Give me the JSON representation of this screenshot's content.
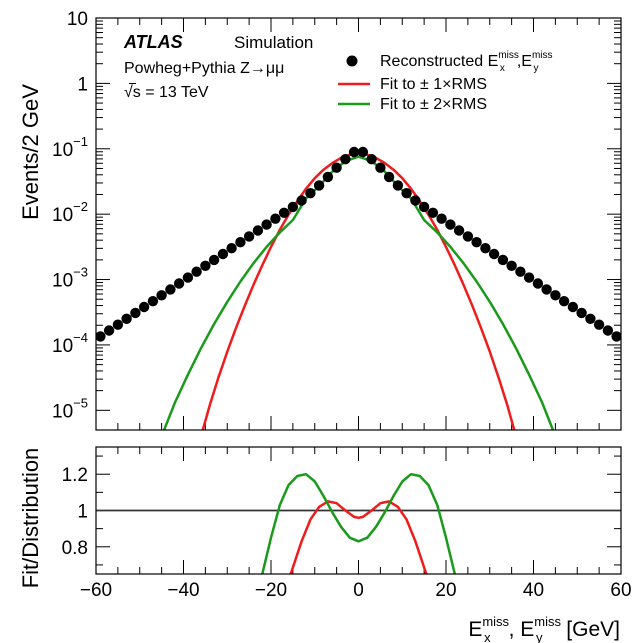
{
  "chart_data": [
    {
      "type": "scatter",
      "yscale": "log",
      "ylabel": "Events/2 GeV",
      "xlim": [
        -60,
        60
      ],
      "ylim": [
        5e-06,
        10
      ],
      "annotations": {
        "experiment": "ATLAS",
        "status": "Simulation",
        "process": "Powheg+Pythia Z→μμ",
        "energy_sqrt": "√s",
        "energy_value": " = 13 TeV"
      },
      "y_ticks": [
        {
          "value": 10,
          "base": "10",
          "exp": ""
        },
        {
          "value": 1,
          "base": "1",
          "exp": ""
        },
        {
          "value": 0.1,
          "base": "10",
          "exp": "−1"
        },
        {
          "value": 0.01,
          "base": "10",
          "exp": "−2"
        },
        {
          "value": 0.001,
          "base": "10",
          "exp": "−3"
        },
        {
          "value": 0.0001,
          "base": "10",
          "exp": "−4"
        },
        {
          "value": 1e-05,
          "base": "10",
          "exp": "−5"
        }
      ],
      "legend_position": "top-right",
      "series": [
        {
          "name": "Reconstructed E_x^miss, E_y^miss",
          "legend": {
            "main": "Reconstructed E",
            "sup1": "miss",
            "sub1": "x",
            "mid": ",E",
            "sup2": "miss",
            "sub2": "y"
          },
          "kind": "points",
          "color": "#000000",
          "x": [
            -59,
            -57,
            -55,
            -53,
            -51,
            -49,
            -47,
            -45,
            -43,
            -41,
            -39,
            -37,
            -35,
            -33,
            -31,
            -29,
            -27,
            -25,
            -23,
            -21,
            -19,
            -17,
            -15,
            -13,
            -11,
            -9,
            -7,
            -5,
            -3,
            -1,
            1,
            3,
            5,
            7,
            9,
            11,
            13,
            15,
            17,
            19,
            21,
            23,
            25,
            27,
            29,
            31,
            33,
            35,
            37,
            39,
            41,
            43,
            45,
            47,
            49,
            51,
            53,
            55,
            57,
            59
          ],
          "y": [
            0.000135,
            0.000166,
            0.000204,
            0.000251,
            0.000309,
            0.00038,
            0.000467,
            0.000575,
            0.000708,
            0.000871,
            0.00107,
            0.00132,
            0.00162,
            0.002,
            0.00246,
            0.00302,
            0.00372,
            0.00457,
            0.00562,
            0.00692,
            0.00851,
            0.0105,
            0.0129,
            0.0162,
            0.0209,
            0.0275,
            0.0372,
            0.0513,
            0.0692,
            0.0891,
            0.0891,
            0.0692,
            0.0513,
            0.0372,
            0.0275,
            0.0209,
            0.0162,
            0.0129,
            0.0105,
            0.00851,
            0.00692,
            0.00562,
            0.00457,
            0.00372,
            0.00302,
            0.00246,
            0.002,
            0.00162,
            0.00132,
            0.00107,
            0.000871,
            0.000708,
            0.000575,
            0.000467,
            0.00038,
            0.000309,
            0.000251,
            0.000204,
            0.000166,
            0.000135
          ]
        },
        {
          "name": "Fit to ± 1×RMS",
          "kind": "line",
          "color": "#ee1c1c",
          "x": [
            -36,
            -34,
            -32,
            -30,
            -28,
            -26,
            -24,
            -22,
            -20,
            -18,
            -16,
            -14,
            -12,
            -10,
            -8,
            -6,
            -4,
            -2,
            0,
            2,
            4,
            6,
            8,
            10,
            12,
            14,
            16,
            18,
            20,
            22,
            24,
            26,
            28,
            30,
            32,
            34,
            36
          ],
          "y": [
            4e-06,
            1.2e-05,
            3.2e-05,
            7.9e-05,
            0.000182,
            0.000398,
            0.000832,
            0.00166,
            0.00316,
            0.00575,
            0.00977,
            0.0158,
            0.0245,
            0.0355,
            0.0479,
            0.0603,
            0.0724,
            0.0813,
            0.0851,
            0.0813,
            0.0724,
            0.0603,
            0.0479,
            0.0355,
            0.0245,
            0.0158,
            0.00977,
            0.00575,
            0.00316,
            0.00166,
            0.000832,
            0.000398,
            0.000182,
            7.9e-05,
            3.2e-05,
            1.2e-05,
            4e-06
          ]
        },
        {
          "name": "Fit to ± 2×RMS",
          "kind": "line",
          "color": "#1a9a1a",
          "x": [
            -45,
            -42,
            -39,
            -36,
            -33,
            -30,
            -27,
            -24,
            -21,
            -18,
            -15,
            -12,
            -9,
            -6,
            -3,
            0,
            3,
            6,
            9,
            12,
            15,
            18,
            21,
            24,
            27,
            30,
            33,
            36,
            39,
            42,
            45
          ],
          "y": [
            4e-06,
            1.3e-05,
            3.5e-05,
            8.9e-05,
            0.000209,
            0.000457,
            0.000933,
            0.00178,
            0.00316,
            0.00525,
            0.00813,
            0.0174,
            0.0269,
            0.0447,
            0.0646,
            0.0759,
            0.0646,
            0.0447,
            0.0269,
            0.0174,
            0.00813,
            0.00525,
            0.00316,
            0.00178,
            0.000933,
            0.000457,
            0.000209,
            8.9e-05,
            3.5e-05,
            1.3e-05,
            4e-06
          ]
        }
      ]
    },
    {
      "type": "line",
      "ylabel": "Fit/Distribution",
      "xlabel": {
        "a": "E",
        "a_sup": "miss",
        "a_sub": "x",
        "b": ", E",
        "b_sup": "miss",
        "b_sub": "y",
        "unit": " [GeV]"
      },
      "xlim": [
        -60,
        60
      ],
      "ylim": [
        0.65,
        1.35
      ],
      "x_ticks": [
        "−60",
        "−40",
        "−20",
        "0",
        "20",
        "40",
        "60"
      ],
      "x_tick_values": [
        -60,
        -40,
        -20,
        0,
        20,
        40,
        60
      ],
      "y_ticks": [
        "0.8",
        "1",
        "1.2"
      ],
      "y_tick_values": [
        0.8,
        1.0,
        1.2
      ],
      "reference_line": 1.0,
      "series": [
        {
          "name": "Fit to ± 1×RMS",
          "color": "#ee1c1c",
          "x": [
            -15.5,
            -13,
            -11,
            -9,
            -7,
            -5,
            -3,
            -1,
            0,
            1,
            3,
            5,
            7,
            9,
            11,
            13,
            15.5
          ],
          "y": [
            0.65,
            0.83,
            0.95,
            1.02,
            1.05,
            1.04,
            1.0,
            0.965,
            0.96,
            0.965,
            1.0,
            1.04,
            1.05,
            1.02,
            0.95,
            0.83,
            0.65
          ]
        },
        {
          "name": "Fit to ± 2×RMS",
          "color": "#1a9a1a",
          "x": [
            -22,
            -20,
            -18,
            -16,
            -14,
            -12,
            -10,
            -8,
            -6,
            -4,
            -2,
            0,
            2,
            4,
            6,
            8,
            10,
            12,
            14,
            16,
            18,
            20,
            22
          ],
          "y": [
            0.65,
            0.85,
            1.03,
            1.14,
            1.19,
            1.2,
            1.16,
            1.08,
            0.99,
            0.91,
            0.85,
            0.83,
            0.85,
            0.91,
            0.99,
            1.08,
            1.16,
            1.2,
            1.19,
            1.14,
            1.03,
            0.85,
            0.65
          ]
        }
      ]
    }
  ]
}
